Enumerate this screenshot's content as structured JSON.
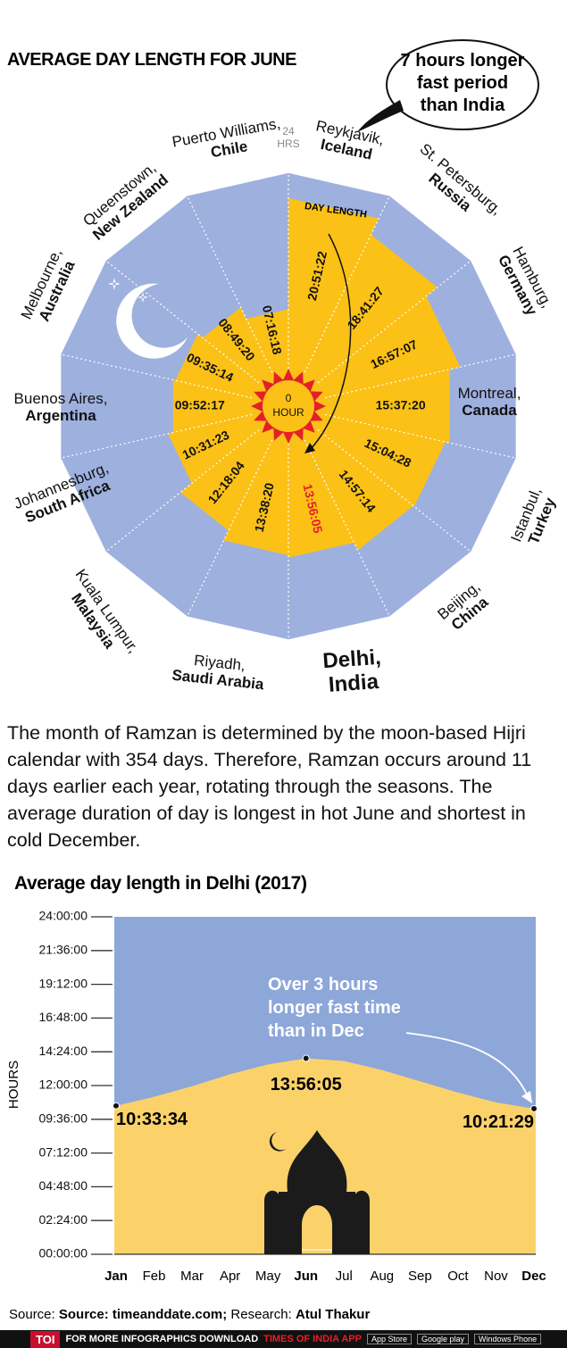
{
  "chart_data": [
    {
      "type": "radial",
      "title": "AVERAGE DAY LENGTH FOR JUNE",
      "series_label": "DAY LENGTH",
      "annotation": "7 hours longer fast period than India",
      "categories": [
        {
          "city": "Reykjavik,",
          "country": "Iceland"
        },
        {
          "city": "St. Petersburg,",
          "country": "Russia"
        },
        {
          "city": "Hamburg,",
          "country": "Germany"
        },
        {
          "city": "Montreal,",
          "country": "Canada"
        },
        {
          "city": "Istanbul,",
          "country": "Turkey"
        },
        {
          "city": "Beijing,",
          "country": "China"
        },
        {
          "city": "Delhi,",
          "country": "India"
        },
        {
          "city": "Riyadh,",
          "country": "Saudi Arabia"
        },
        {
          "city": "Kuala Lumpur,",
          "country": "Malaysia"
        },
        {
          "city": "Johannesburg,",
          "country": "South Africa"
        },
        {
          "city": "Buenos Aires,",
          "country": "Argentina"
        },
        {
          "city": "Melbourne,",
          "country": "Australia"
        },
        {
          "city": "Queenstown,",
          "country": "New Zealand"
        },
        {
          "city": "Puerto Williams,",
          "country": "Chile"
        }
      ],
      "values": [
        20.85611,
        18.69083,
        16.95194,
        15.62222,
        15.07444,
        14.95389,
        13.93472,
        13.63889,
        12.30111,
        10.52306,
        9.87139,
        9.58722,
        8.82222,
        7.27167
      ],
      "value_labels": [
        "20:51:22",
        "18:41:27",
        "16:57:07",
        "15:37:20",
        "15:04:28",
        "14:57:14",
        "13:56:05",
        "13:38:20",
        "12:18:04",
        "10:31:23",
        "09:52:17",
        "09:35:14",
        "08:49:20",
        "07:16:18"
      ],
      "rlim": [
        0,
        24
      ],
      "rticks": [
        {
          "value": 0,
          "label": "0 HOUR"
        },
        {
          "value": 24,
          "label": "24 HRS"
        }
      ],
      "color": "#fcc116",
      "background_color": "#9eb0de",
      "highlight_color": "#e3202a"
    },
    {
      "type": "area",
      "title": "Average day length in Delhi (2017)",
      "y_label": "HOURS",
      "annotation": "Over 3 hours longer fast time than in Dec",
      "categories": [
        "Jan",
        "Feb",
        "Mar",
        "Apr",
        "May",
        "Jun",
        "Jul",
        "Aug",
        "Sep",
        "Oct",
        "Nov",
        "Dec"
      ],
      "values": [
        10.55944,
        11.2,
        11.95,
        12.8,
        13.5,
        13.93472,
        13.75,
        13.1,
        12.3,
        11.5,
        10.8,
        10.35806
      ],
      "value_labels": [
        "10:33:34",
        null,
        null,
        null,
        null,
        "13:56:05",
        null,
        null,
        null,
        null,
        null,
        "10:21:29"
      ],
      "ylim": [
        0,
        24
      ],
      "yticks": [
        {
          "value": 0,
          "label": "00:00:00"
        },
        {
          "value": 2.4,
          "label": "02:24:00"
        },
        {
          "value": 4.8,
          "label": "04:48:00"
        },
        {
          "value": 7.2,
          "label": "07:12:00"
        },
        {
          "value": 9.6,
          "label": "09:36:00"
        },
        {
          "value": 12,
          "label": "12:00:00"
        },
        {
          "value": 14.4,
          "label": "14:24:00"
        },
        {
          "value": 16.8,
          "label": "16:48:00"
        },
        {
          "value": 19.2,
          "label": "19:12:00"
        },
        {
          "value": 21.6,
          "label": "21:36:00"
        },
        {
          "value": 24,
          "label": "24:00:00"
        }
      ],
      "color": "#fbd26a",
      "background_color": "#8ea7d9"
    }
  ],
  "paragraph": "The month of Ramzan is determined by the moon-based Hijri calendar with 354 days. Therefore, Ramzan occurs around 11 days earlier each year, rotating through the seasons. The average duration of  day is longest in hot June and shortest in cold December.",
  "source": {
    "prefix": "Source:",
    "source": "Source: timeanddate.com;",
    "research_label": "Research:",
    "research": "Atul Thakur"
  },
  "footer": {
    "brand": "TOI",
    "text": "FOR MORE INFOGRAPHICS DOWNLOAD",
    "app": "TIMES OF INDIA APP",
    "badges": [
      "App Store",
      "Google play",
      "Windows Phone"
    ]
  }
}
